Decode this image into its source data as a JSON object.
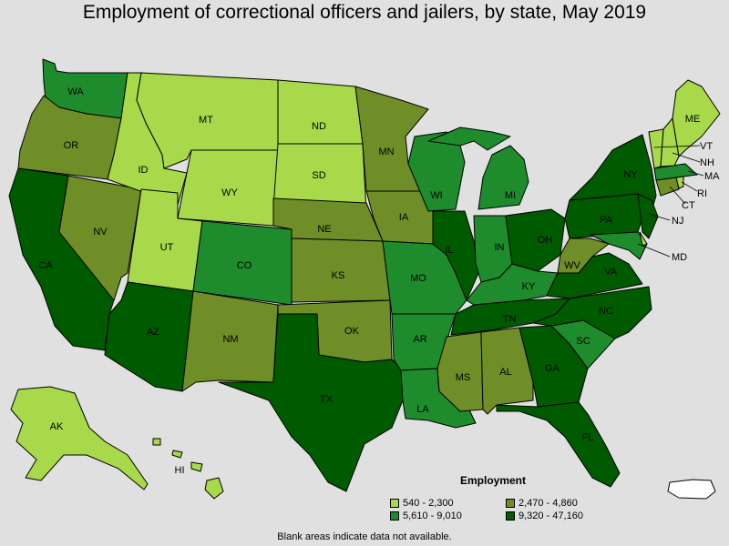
{
  "title": "Employment of correctional officers and jailers, by state, May 2019",
  "colors": {
    "c1": "#a8d94a",
    "c2": "#6f8e27",
    "c3": "#1e8b2d",
    "c4": "#005a00",
    "blank": "#ffffff"
  },
  "legend": {
    "title": "Employment",
    "items": [
      {
        "label": "540 - 2,300",
        "color_key": "c1"
      },
      {
        "label": "2,470 - 4,860",
        "color_key": "c2"
      },
      {
        "label": "5,610 - 9,010",
        "color_key": "c3"
      },
      {
        "label": "9,320 - 47,160",
        "color_key": "c4"
      }
    ]
  },
  "footnote": "Blank areas indicate data not available.",
  "states": {
    "WA": "c3",
    "OR": "c2",
    "CA": "c4",
    "NV": "c2",
    "ID": "c1",
    "MT": "c1",
    "WY": "c1",
    "UT": "c1",
    "AZ": "c4",
    "CO": "c3",
    "NM": "c2",
    "ND": "c1",
    "SD": "c1",
    "NE": "c2",
    "KS": "c2",
    "OK": "c2",
    "TX": "c4",
    "MN": "c2",
    "IA": "c2",
    "MO": "c3",
    "AR": "c3",
    "LA": "c3",
    "WI": "c3",
    "IL": "c4",
    "MI": "c3",
    "IN": "c3",
    "OH": "c4",
    "KY": "c3",
    "TN": "c4",
    "MS": "c2",
    "AL": "c2",
    "GA": "c4",
    "FL": "c4",
    "SC": "c3",
    "NC": "c4",
    "VA": "c4",
    "WV": "c2",
    "PA": "c4",
    "NY": "c4",
    "NJ": "c4",
    "MD": "c3",
    "DE": "c1",
    "CT": "c2",
    "RI": "c1",
    "MA": "c3",
    "VT": "c1",
    "NH": "c1",
    "ME": "c1",
    "AK": "c1",
    "HI": "c1",
    "PR": "blank"
  }
}
